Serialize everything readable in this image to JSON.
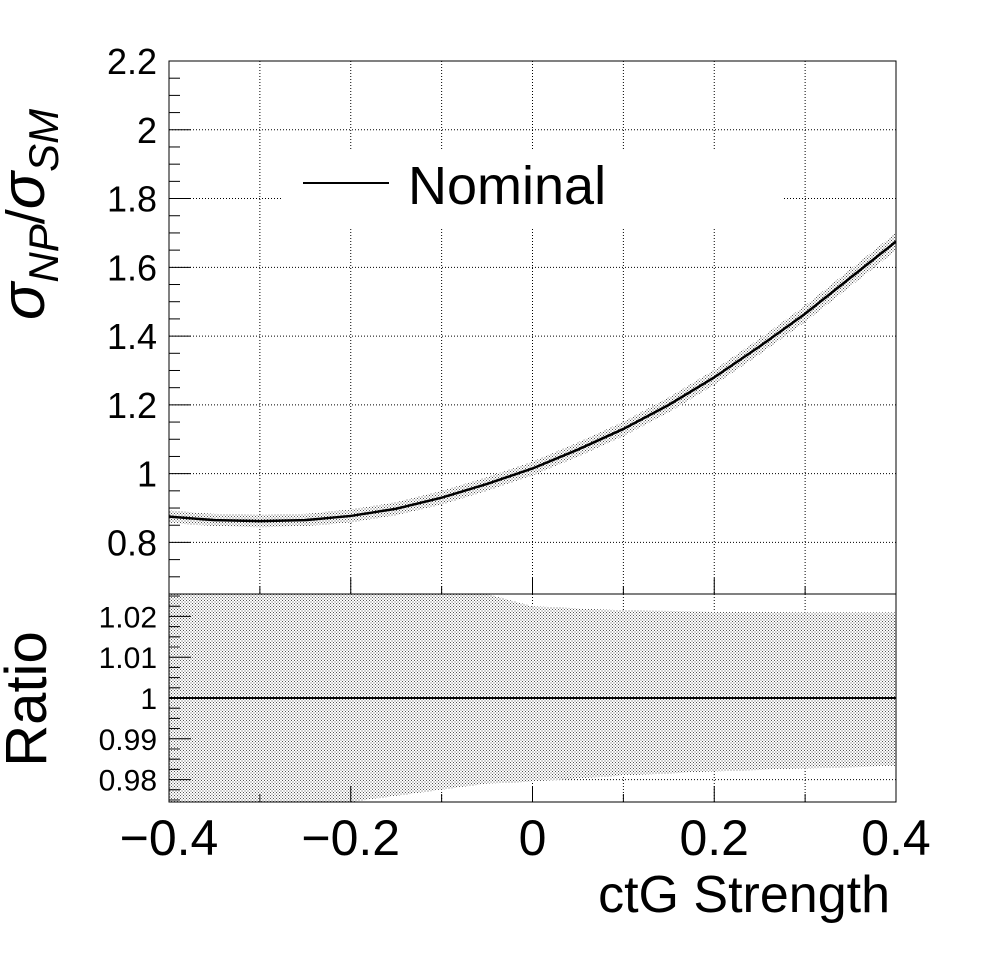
{
  "chart_data": [
    {
      "type": "line",
      "panel": "main",
      "ylabel": "σNP/σSM",
      "ylabel_parts": {
        "sym1": "σ",
        "sub1": "NP",
        "slash": "/",
        "sym2": "σ",
        "sub2": "SM"
      },
      "xlim": [
        -0.4,
        0.4
      ],
      "ylim": [
        0.65,
        2.2
      ],
      "grid": true,
      "legend_placement": "top-left",
      "y_ticks": [
        {
          "value": 0.8,
          "label": "0.8"
        },
        {
          "value": 1.0,
          "label": "1"
        },
        {
          "value": 1.2,
          "label": "1.2"
        },
        {
          "value": 1.4,
          "label": "1.4"
        },
        {
          "value": 1.6,
          "label": "1.6"
        },
        {
          "value": 1.8,
          "label": "1.8"
        },
        {
          "value": 2.0,
          "label": "2"
        },
        {
          "value": 2.2,
          "label": "2.2"
        }
      ],
      "series": [
        {
          "name": "Nominal",
          "color": "#000000",
          "band_color": "#9a9a9a",
          "x": [
            -0.4,
            -0.35,
            -0.3,
            -0.25,
            -0.2,
            -0.15,
            -0.1,
            -0.05,
            0.0,
            0.05,
            0.1,
            0.15,
            0.2,
            0.25,
            0.3,
            0.35,
            0.4
          ],
          "y": [
            0.875,
            0.865,
            0.862,
            0.865,
            0.877,
            0.898,
            0.93,
            0.97,
            1.015,
            1.07,
            1.13,
            1.2,
            1.28,
            1.37,
            1.465,
            1.57,
            1.675
          ],
          "band_halfwidth": [
            0.018,
            0.018,
            0.018,
            0.018,
            0.019,
            0.019,
            0.02,
            0.02,
            0.02,
            0.021,
            0.021,
            0.022,
            0.022,
            0.023,
            0.024,
            0.025,
            0.026
          ]
        }
      ]
    },
    {
      "type": "line",
      "panel": "ratio",
      "ylabel": "Ratio",
      "xlabel": "ctG Strength",
      "xlim": [
        -0.4,
        0.4
      ],
      "ylim": [
        0.9745,
        1.0255
      ],
      "grid": true,
      "x_ticks": [
        {
          "value": -0.4,
          "label": "−0.4"
        },
        {
          "value": -0.2,
          "label": "−0.2"
        },
        {
          "value": 0.0,
          "label": "0"
        },
        {
          "value": 0.2,
          "label": "0.2"
        },
        {
          "value": 0.4,
          "label": "0.4"
        }
      ],
      "y_ticks": [
        {
          "value": 0.98,
          "label": "0.98"
        },
        {
          "value": 0.99,
          "label": "0.99"
        },
        {
          "value": 1.0,
          "label": "1"
        },
        {
          "value": 1.01,
          "label": "1.01"
        },
        {
          "value": 1.02,
          "label": "1.02"
        }
      ],
      "series": [
        {
          "color": "#000000",
          "band_color": "#9a9a9a",
          "x": [
            -0.4,
            -0.3,
            -0.2,
            -0.15,
            -0.1,
            -0.05,
            0.0,
            0.1,
            0.2,
            0.3,
            0.4
          ],
          "y": [
            1,
            1,
            1,
            1,
            1,
            1,
            1,
            1,
            1,
            1,
            1
          ],
          "band_upper": [
            1.0255,
            1.0255,
            1.0255,
            1.0255,
            1.0255,
            1.0255,
            1.0225,
            1.0215,
            1.0212,
            1.021,
            1.021
          ],
          "band_lower": [
            0.9745,
            0.9745,
            0.9745,
            0.976,
            0.9775,
            0.979,
            0.9795,
            0.981,
            0.982,
            0.9827,
            0.9833
          ]
        }
      ]
    }
  ]
}
